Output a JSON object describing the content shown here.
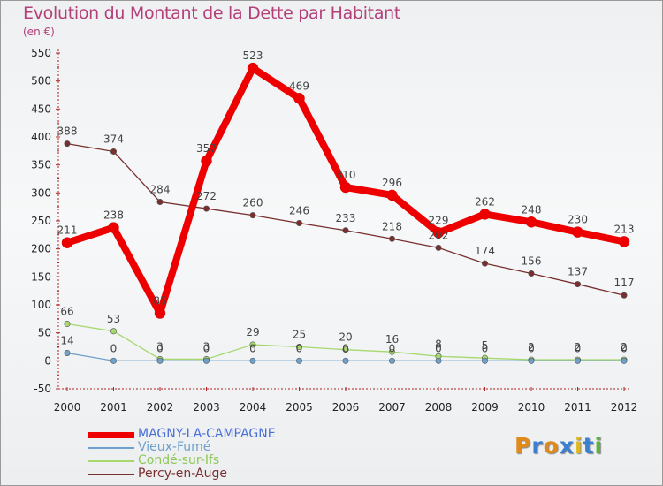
{
  "header": {
    "title": "Evolution du Montant de la Dette par Habitant",
    "unit": "(en €)"
  },
  "brand": {
    "letters": [
      "P",
      "r",
      "o",
      "x",
      "i",
      "t",
      "i"
    ],
    "colors": [
      "#e08a1c",
      "#3a7fd0",
      "#e08a1c",
      "#3a7fd0",
      "#e0b81c",
      "#3a7fd0",
      "#5cb43a"
    ]
  },
  "chart_data": {
    "type": "line",
    "title": "Evolution du Montant de la Dette par Habitant",
    "ylabel": "(en €)",
    "xlabel": "",
    "x": [
      "2000",
      "2001",
      "2002",
      "2003",
      "2004",
      "2005",
      "2006",
      "2007",
      "2008",
      "2009",
      "2010",
      "2011",
      "2012"
    ],
    "ylim": [
      -50,
      550
    ],
    "yticks": [
      -50,
      0,
      50,
      100,
      150,
      200,
      250,
      300,
      350,
      400,
      450,
      500,
      550
    ],
    "grid": false,
    "legend_position": "bottom-left",
    "series": [
      {
        "name": "MAGNY-LA-CAMPAGNE",
        "color": "#ee0000",
        "legend_text_color": "#4a6fd8",
        "emphasis": "thick",
        "values": [
          211,
          238,
          85,
          357,
          523,
          469,
          310,
          296,
          229,
          262,
          248,
          230,
          213
        ],
        "labels": [
          "211",
          "238",
          "85",
          "357",
          "523",
          "469",
          "310",
          "296",
          "229",
          "262",
          "248",
          "230",
          "213"
        ]
      },
      {
        "name": "Vieux-Fumé",
        "color": "#6ea0cc",
        "legend_text_color": "#6ea0cc",
        "emphasis": "thin",
        "values": [
          14,
          0,
          0,
          0,
          0,
          0,
          0,
          0,
          0,
          0,
          0,
          0,
          0
        ],
        "labels": [
          "14",
          "0",
          "0",
          "0",
          "0",
          "0",
          "0",
          "0",
          "0",
          "0",
          "0",
          "0",
          "0"
        ]
      },
      {
        "name": "Condé-sur-Ifs",
        "color": "#a6d86e",
        "legend_text_color": "#8ec85a",
        "emphasis": "thin",
        "values": [
          66,
          53,
          3,
          3,
          29,
          25,
          20,
          16,
          8,
          5,
          2,
          2,
          2
        ],
        "labels": [
          "66",
          "53",
          "3",
          "3",
          "29",
          "25",
          "20",
          "16",
          "8",
          "5",
          "2",
          "2",
          "2"
        ]
      },
      {
        "name": "Percy-en-Auge",
        "color": "#7a2f2f",
        "legend_text_color": "#7a2f2f",
        "emphasis": "thin",
        "values": [
          388,
          374,
          284,
          272,
          260,
          246,
          233,
          218,
          202,
          174,
          156,
          137,
          117
        ],
        "labels": [
          "388",
          "374",
          "284",
          "272",
          "260",
          "246",
          "233",
          "218",
          "202",
          "174",
          "156",
          "137",
          "117"
        ]
      }
    ]
  }
}
